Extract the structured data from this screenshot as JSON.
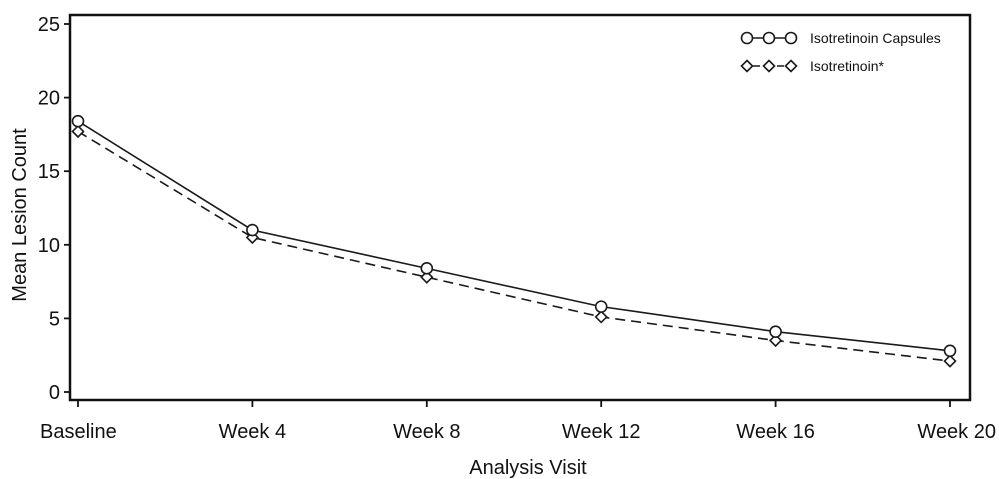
{
  "chart_data": {
    "type": "line",
    "title": "",
    "xlabel": "Analysis Visit",
    "ylabel": "Mean Lesion Count",
    "categories": [
      "Baseline",
      "Week 4",
      "Week 8",
      "Week 12",
      "Week 16",
      "Week 20"
    ],
    "ylim": [
      0,
      25
    ],
    "yticks": [
      0,
      5,
      10,
      15,
      20,
      25
    ],
    "grid": false,
    "legend_position": "top-right",
    "series": [
      {
        "name": "Isotretinoin Capsules",
        "values": [
          18.4,
          11.0,
          8.4,
          5.8,
          4.1,
          2.8
        ],
        "marker": "circle",
        "line_style": "solid",
        "color": "#1a1a1a"
      },
      {
        "name": "Isotretinoin*",
        "values": [
          17.7,
          10.5,
          7.8,
          5.1,
          3.5,
          2.1
        ],
        "marker": "diamond",
        "line_style": "dashed",
        "color": "#1a1a1a"
      }
    ]
  }
}
